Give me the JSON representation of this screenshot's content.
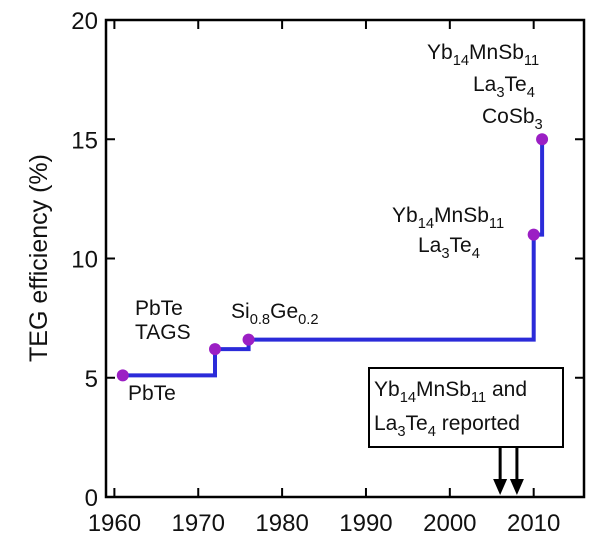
{
  "chart_data": {
    "type": "line",
    "line_style": "step",
    "ylabel": "TEG efficiency (%)",
    "xlabel": "",
    "xlim": [
      1959,
      2016
    ],
    "ylim": [
      0,
      20
    ],
    "xticks": [
      1960,
      1970,
      1980,
      1990,
      2000,
      2010
    ],
    "yticks": [
      0,
      5,
      10,
      15,
      20
    ],
    "grid": false,
    "colors": {
      "line": "#2b2bd9",
      "marker": "#9b1fc4",
      "axis": "#000000"
    },
    "points": [
      {
        "x": 1961,
        "y": 5.1
      },
      {
        "x": 1972,
        "y": 6.2
      },
      {
        "x": 1976,
        "y": 6.6
      },
      {
        "x": 2010,
        "y": 11.0
      },
      {
        "x": 2011,
        "y": 15.0
      }
    ],
    "step_line": [
      [
        1961,
        5.1
      ],
      [
        1972,
        5.1
      ],
      [
        1972,
        6.2
      ],
      [
        1976,
        6.2
      ],
      [
        1976,
        6.6
      ],
      [
        2010,
        6.6
      ],
      [
        2010,
        11.0
      ],
      [
        2011,
        11.0
      ],
      [
        2011,
        15.0
      ]
    ],
    "annotations": [
      {
        "id": "pbte",
        "parts": [
          [
            "PbTe",
            ""
          ]
        ]
      },
      {
        "id": "pbte2",
        "parts": [
          [
            "PbTe",
            ""
          ]
        ]
      },
      {
        "id": "tags",
        "parts": [
          [
            "TAGS",
            ""
          ]
        ]
      },
      {
        "id": "sige",
        "parts": [
          [
            "Si",
            ""
          ],
          [
            "0.8",
            "sub"
          ],
          [
            "Ge",
            ""
          ],
          [
            "0.2",
            "sub"
          ]
        ]
      },
      {
        "id": "yb-low",
        "parts": [
          [
            "Yb",
            ""
          ],
          [
            "14",
            "sub"
          ],
          [
            "MnSb",
            ""
          ],
          [
            "11",
            "sub"
          ]
        ]
      },
      {
        "id": "la-low",
        "parts": [
          [
            "La",
            ""
          ],
          [
            "3",
            "sub"
          ],
          [
            "Te",
            ""
          ],
          [
            "4",
            "sub"
          ]
        ]
      },
      {
        "id": "yb-top",
        "parts": [
          [
            "Yb",
            ""
          ],
          [
            "14",
            "sub"
          ],
          [
            "MnSb",
            ""
          ],
          [
            "11",
            "sub"
          ]
        ]
      },
      {
        "id": "la-top",
        "parts": [
          [
            "La",
            ""
          ],
          [
            "3",
            "sub"
          ],
          [
            "Te",
            ""
          ],
          [
            "4",
            "sub"
          ]
        ]
      },
      {
        "id": "cosb",
        "parts": [
          [
            "CoSb",
            ""
          ],
          [
            "3",
            "sub"
          ]
        ]
      }
    ],
    "report_box": {
      "line1": [
        [
          "Yb",
          ""
        ],
        [
          "14",
          "sub"
        ],
        [
          "MnSb",
          ""
        ],
        [
          "11",
          "sub"
        ],
        [
          " and",
          ""
        ]
      ],
      "line2": [
        [
          "La",
          ""
        ],
        [
          "3",
          "sub"
        ],
        [
          "Te",
          ""
        ],
        [
          "4",
          "sub"
        ],
        [
          " reported",
          ""
        ]
      ],
      "arrows_x": [
        2006,
        2008
      ]
    }
  }
}
